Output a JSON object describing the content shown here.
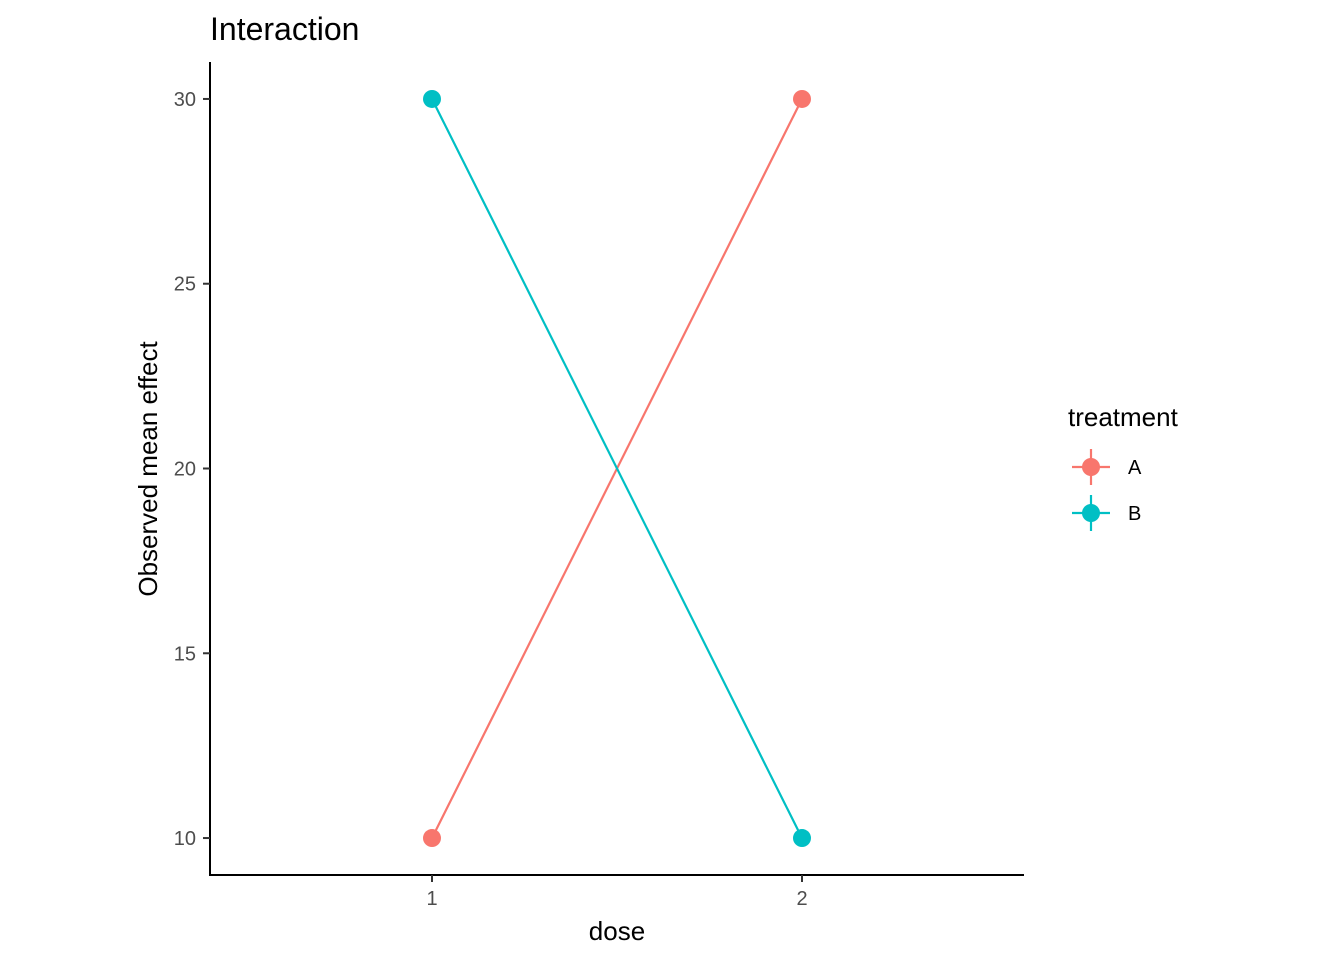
{
  "chart_data": {
    "type": "line",
    "title": "Interaction",
    "xlabel": "dose",
    "ylabel": "Observed mean effect",
    "categories": [
      "1",
      "2"
    ],
    "x_ticks": [
      "1",
      "2"
    ],
    "y_ticks": [
      10,
      15,
      20,
      25,
      30
    ],
    "ylim": [
      9,
      31
    ],
    "grid": false,
    "legend": {
      "title": "treatment",
      "position": "right"
    },
    "series": [
      {
        "name": "A",
        "color": "#F8766D",
        "values": [
          10,
          30
        ]
      },
      {
        "name": "B",
        "color": "#00BFC4",
        "values": [
          30,
          10
        ]
      }
    ]
  }
}
